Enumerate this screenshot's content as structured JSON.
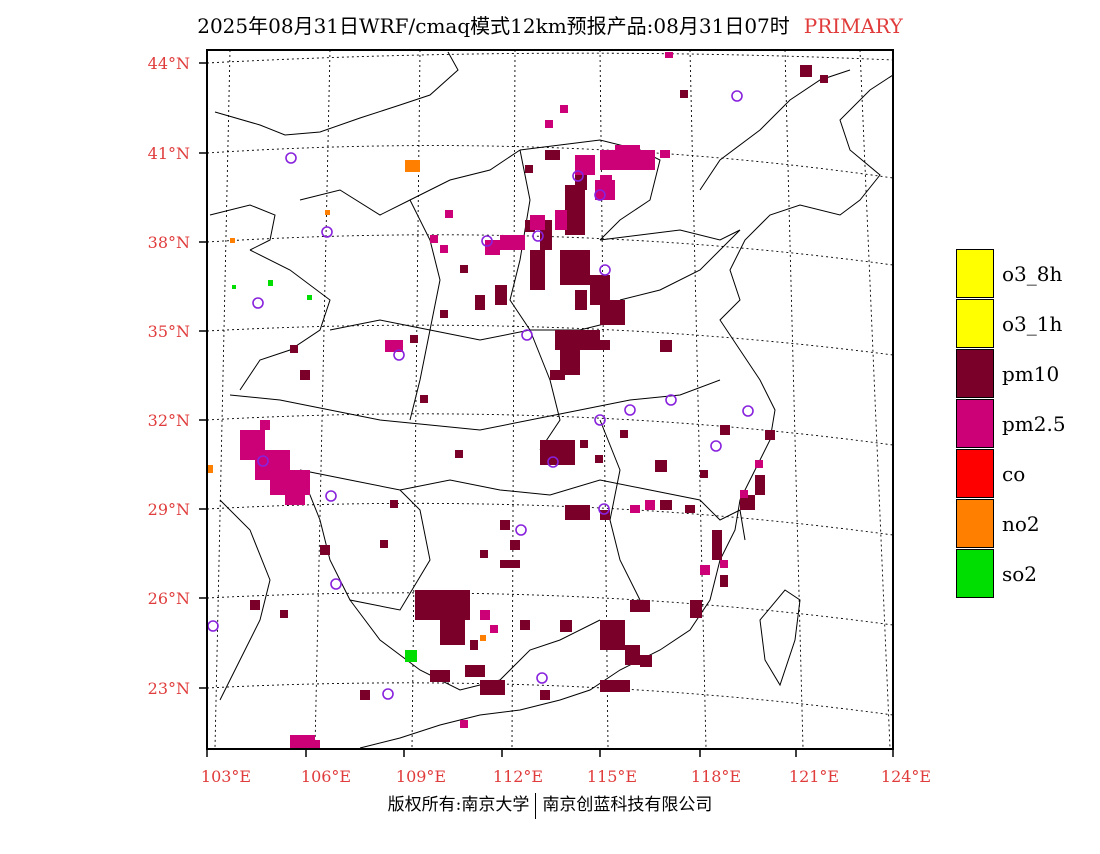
{
  "title": {
    "main": "2025年08月31日WRF/cmaq模式12km预报产品:08月31日07时",
    "tag": "PRIMARY"
  },
  "colors": {
    "accent": "#e03c3c",
    "pm10": "#7b0029",
    "pm25": "#cc0077",
    "o3": "#ffff00",
    "co": "#ff0000",
    "no2": "#ff7f00",
    "so2": "#00dd00",
    "station_marker": "#8822dd"
  },
  "axes": {
    "lat_labels": [
      "44°N",
      "41°N",
      "38°N",
      "35°N",
      "32°N",
      "29°N",
      "26°N",
      "23°N"
    ],
    "lon_labels": [
      "103°E",
      "106°E",
      "109°E",
      "112°E",
      "115°E",
      "118°E",
      "121°E",
      "124°E"
    ]
  },
  "legend": {
    "items": [
      {
        "label": "o3_8h",
        "color": "#ffff00"
      },
      {
        "label": "o3_1h",
        "color": "#ffff00"
      },
      {
        "label": "pm10",
        "color": "#7b0029"
      },
      {
        "label": "pm2.5",
        "color": "#cc0077"
      },
      {
        "label": "co",
        "color": "#ff0000"
      },
      {
        "label": "no2",
        "color": "#ff7f00"
      },
      {
        "label": "so2",
        "color": "#00dd00"
      }
    ]
  },
  "footer": {
    "left": "版权所有:南京大学",
    "right": "南京创蓝科技有限公司"
  }
}
